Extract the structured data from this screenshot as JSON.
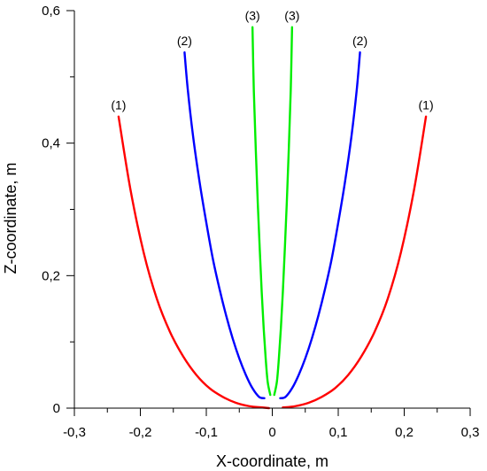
{
  "chart_data": {
    "type": "line",
    "xlabel": "X-coordinate, m",
    "ylabel": "Z-coordinate, m",
    "xlim": [
      -0.3,
      0.3
    ],
    "ylim": [
      0,
      0.6
    ],
    "xticks": [
      {
        "value": -0.3,
        "label": "-0,3"
      },
      {
        "value": -0.2,
        "label": "-0,2"
      },
      {
        "value": -0.1,
        "label": "-0,1"
      },
      {
        "value": 0,
        "label": "0"
      },
      {
        "value": 0.1,
        "label": "0,1"
      },
      {
        "value": 0.2,
        "label": "0,2"
      },
      {
        "value": 0.3,
        "label": "0,3"
      }
    ],
    "yticks": [
      {
        "value": 0,
        "label": "0"
      },
      {
        "value": 0.2,
        "label": "0,2"
      },
      {
        "value": 0.4,
        "label": "0,4"
      },
      {
        "value": 0.6,
        "label": "0,6"
      }
    ],
    "series": [
      {
        "name": "(1)",
        "side": "left",
        "color": "#ff0000",
        "x": [
          -0.233,
          -0.215,
          -0.195,
          -0.175,
          -0.155,
          -0.135,
          -0.115,
          -0.095,
          -0.075,
          -0.055,
          -0.035,
          -0.015,
          -0.005
        ],
        "y": [
          0.44,
          0.33,
          0.235,
          0.165,
          0.115,
          0.078,
          0.05,
          0.03,
          0.017,
          0.008,
          0.003,
          0.001,
          0.0
        ]
      },
      {
        "name": "(1)",
        "side": "right",
        "color": "#ff0000",
        "x": [
          0.016,
          0.035,
          0.055,
          0.075,
          0.095,
          0.115,
          0.135,
          0.155,
          0.175,
          0.195,
          0.215,
          0.233
        ],
        "y": [
          0.001,
          0.003,
          0.008,
          0.017,
          0.03,
          0.05,
          0.078,
          0.115,
          0.165,
          0.235,
          0.33,
          0.44
        ]
      },
      {
        "name": "(2)",
        "side": "left",
        "color": "#0000ff",
        "x": [
          -0.133,
          -0.128,
          -0.12,
          -0.11,
          -0.1,
          -0.09,
          -0.08,
          -0.07,
          -0.06,
          -0.05,
          -0.04,
          -0.03,
          -0.02,
          -0.012
        ],
        "y": [
          0.537,
          0.48,
          0.41,
          0.34,
          0.28,
          0.225,
          0.18,
          0.14,
          0.105,
          0.075,
          0.05,
          0.03,
          0.017,
          0.015
        ]
      },
      {
        "name": "(2)",
        "side": "right",
        "color": "#0000ff",
        "x": [
          0.012,
          0.02,
          0.03,
          0.04,
          0.05,
          0.06,
          0.07,
          0.08,
          0.09,
          0.1,
          0.11,
          0.12,
          0.128,
          0.133
        ],
        "y": [
          0.015,
          0.017,
          0.03,
          0.05,
          0.075,
          0.105,
          0.14,
          0.18,
          0.225,
          0.28,
          0.34,
          0.41,
          0.48,
          0.537
        ]
      },
      {
        "name": "(3)",
        "side": "left",
        "color": "#00ee00",
        "x": [
          -0.03,
          -0.028,
          -0.025,
          -0.022,
          -0.019,
          -0.016,
          -0.013,
          -0.01,
          -0.007,
          -0.003
        ],
        "y": [
          0.575,
          0.48,
          0.39,
          0.31,
          0.24,
          0.175,
          0.12,
          0.075,
          0.04,
          0.02
        ]
      },
      {
        "name": "(3)",
        "side": "right",
        "color": "#00ee00",
        "x": [
          0.003,
          0.007,
          0.01,
          0.013,
          0.016,
          0.019,
          0.022,
          0.025,
          0.028,
          0.03
        ],
        "y": [
          0.02,
          0.04,
          0.075,
          0.12,
          0.175,
          0.24,
          0.31,
          0.39,
          0.48,
          0.575
        ]
      }
    ]
  }
}
